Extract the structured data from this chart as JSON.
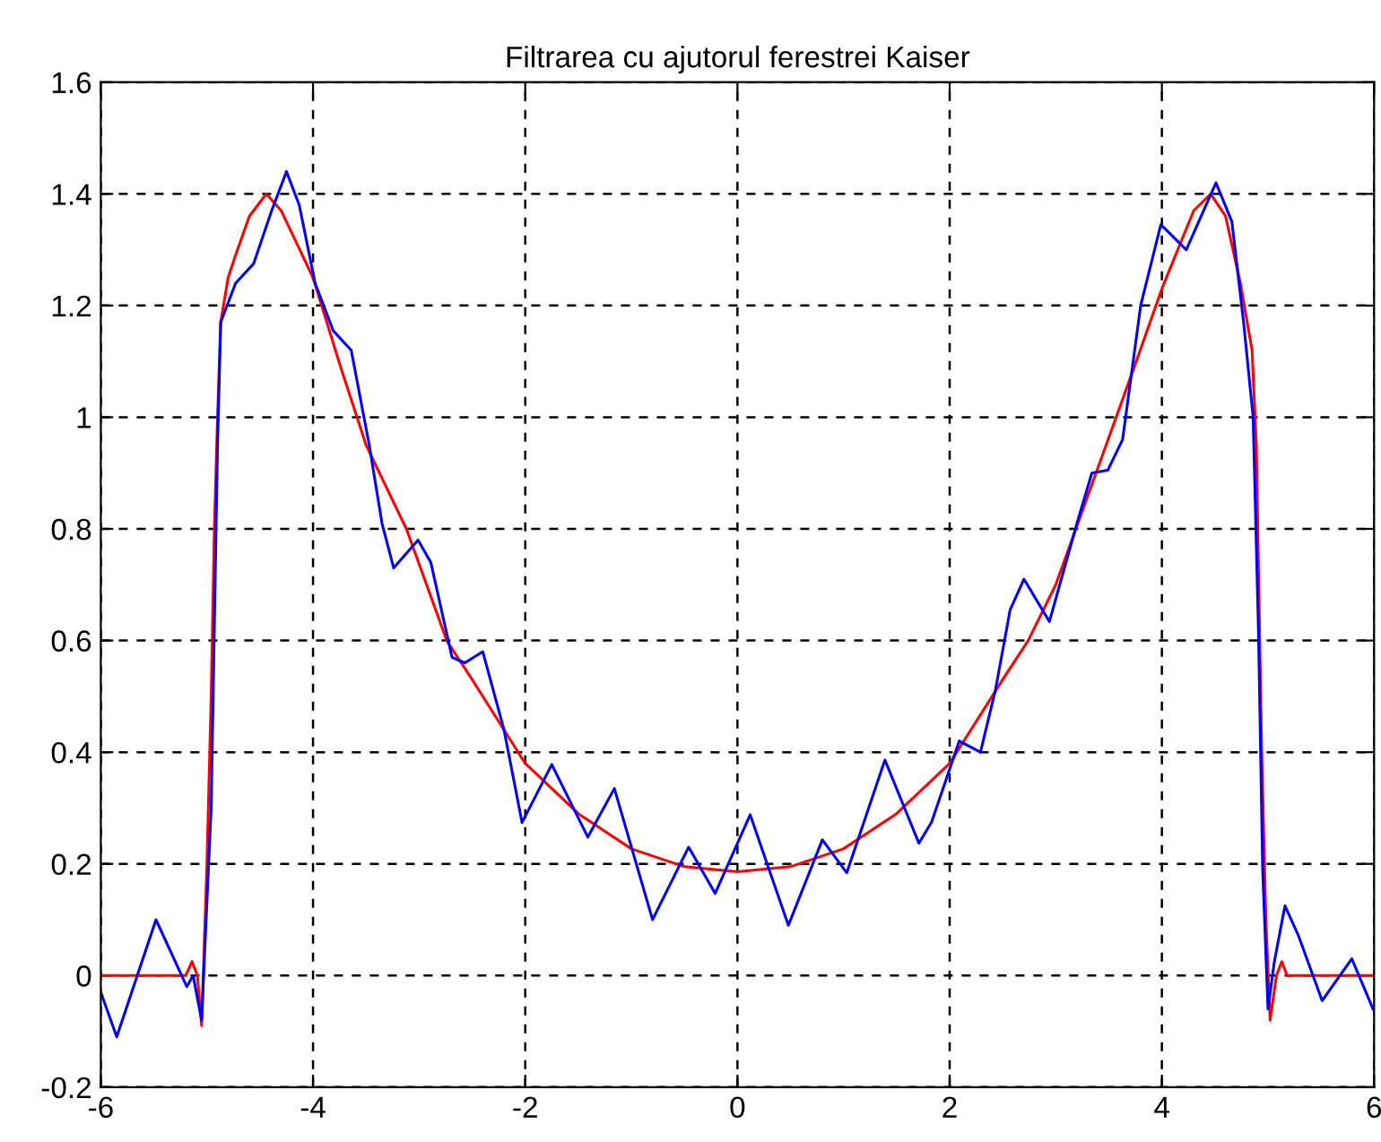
{
  "chart_data": {
    "type": "line",
    "title": "Filtrarea cu ajutorul ferestrei Kaiser",
    "xlim": [
      -6,
      6
    ],
    "xticks": [
      -6,
      -4,
      -2,
      0,
      2,
      4,
      6
    ],
    "ylim": [
      -0.2,
      1.6
    ],
    "yticks": [
      -0.2,
      0,
      0.2,
      0.4,
      0.6,
      0.8,
      1,
      1.2,
      1.4,
      1.6
    ],
    "grid": true,
    "line_style": "solid",
    "marker": "none",
    "legend": false,
    "series": [
      {
        "color": "#ff0000",
        "x": [
          -6,
          -5.2,
          -5.14,
          -5.09,
          -5.05,
          -5.0,
          -4.96,
          -4.93,
          -4.9,
          -4.87,
          -4.8,
          -4.73,
          -4.6,
          -4.44,
          -4.3,
          -4.0,
          -3.74,
          -3.5,
          -3.12,
          -2.74,
          -2.5,
          -2.2,
          -2.0,
          -1.5,
          -1.0,
          -0.5,
          0,
          0.5,
          1.0,
          1.5,
          2.0,
          2.5,
          2.74,
          3.0,
          3.37,
          3.74,
          4.0,
          4.3,
          4.46,
          4.6,
          4.74,
          4.85,
          4.89,
          4.94,
          4.98,
          5.02,
          5.08,
          5.13,
          5.18,
          5.23,
          6
        ],
        "values": [
          0,
          0,
          0.025,
          0,
          -0.09,
          0.2,
          0.5,
          0.8,
          1.0,
          1.17,
          1.25,
          1.29,
          1.36,
          1.4,
          1.37,
          1.25,
          1.09,
          0.95,
          0.8,
          0.6,
          0.53,
          0.44,
          0.38,
          0.29,
          0.227,
          0.195,
          0.186,
          0.195,
          0.227,
          0.29,
          0.38,
          0.53,
          0.6,
          0.7,
          0.895,
          1.09,
          1.23,
          1.37,
          1.4,
          1.36,
          1.24,
          1.12,
          0.95,
          0.41,
          0.1,
          -0.08,
          0,
          0.025,
          0,
          0,
          0
        ]
      },
      {
        "color": "#0000ff",
        "x": [
          -6.0,
          -5.85,
          -5.48,
          -5.19,
          -5.13,
          -5.05,
          -4.96,
          -4.9,
          -4.87,
          -4.73,
          -4.56,
          -4.39,
          -4.25,
          -4.13,
          -3.98,
          -3.81,
          -3.64,
          -3.47,
          -3.35,
          -3.24,
          -3.01,
          -2.89,
          -2.69,
          -2.57,
          -2.4,
          -2.2,
          -2.03,
          -1.75,
          -1.41,
          -1.16,
          -0.8,
          -0.46,
          -0.21,
          0.12,
          0.48,
          0.8,
          1.03,
          1.39,
          1.71,
          1.83,
          2.09,
          2.29,
          2.43,
          2.57,
          2.7,
          2.94,
          3.2,
          3.34,
          3.49,
          3.63,
          3.8,
          3.99,
          4.23,
          4.51,
          4.66,
          4.77,
          4.86,
          4.91,
          4.95,
          5.0,
          5.06,
          5.16,
          5.29,
          5.51,
          5.79,
          5.99
        ],
        "values": [
          -0.03,
          -0.11,
          0.1,
          -0.02,
          0.0,
          -0.08,
          0.3,
          0.95,
          1.17,
          1.24,
          1.275,
          1.37,
          1.44,
          1.38,
          1.24,
          1.155,
          1.12,
          0.95,
          0.81,
          0.73,
          0.78,
          0.74,
          0.57,
          0.56,
          0.58,
          0.44,
          0.274,
          0.378,
          0.248,
          0.335,
          0.1,
          0.23,
          0.147,
          0.288,
          0.09,
          0.243,
          0.184,
          0.386,
          0.237,
          0.275,
          0.42,
          0.4,
          0.51,
          0.655,
          0.71,
          0.634,
          0.81,
          0.9,
          0.905,
          0.96,
          1.2,
          1.345,
          1.3,
          1.42,
          1.35,
          1.17,
          1.0,
          0.62,
          0.19,
          -0.06,
          0.025,
          0.125,
          0.07,
          -0.045,
          0.03,
          -0.06
        ]
      }
    ]
  }
}
